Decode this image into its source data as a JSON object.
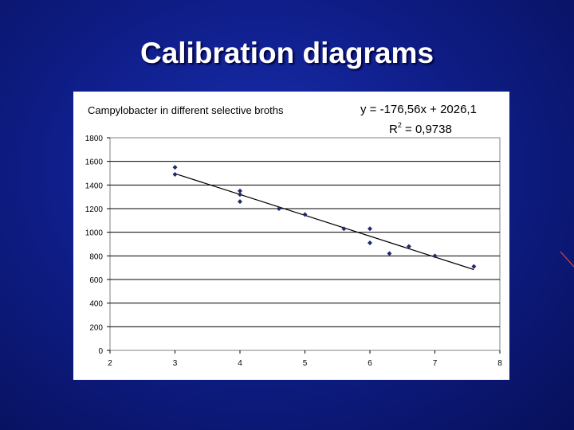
{
  "slide": {
    "title": "Calibration diagrams"
  },
  "colors": {
    "background": "#0f1e8a",
    "marker": "#1f2a6b",
    "trendline": "#000000",
    "decor_line": "#e05050"
  },
  "chart_data": {
    "type": "scatter",
    "title": "Campylobacter in different selective broths",
    "xlabel": "",
    "ylabel": "",
    "xlim": [
      2,
      8
    ],
    "ylim": [
      0,
      1800
    ],
    "x_ticks": [
      "2",
      "3",
      "4",
      "5",
      "6",
      "7",
      "8"
    ],
    "y_ticks": [
      "0",
      "200",
      "400",
      "600",
      "800",
      "1000",
      "1200",
      "1400",
      "1600",
      "1800"
    ],
    "grid": "horizontal",
    "points": [
      {
        "x": 3.0,
        "y": 1550
      },
      {
        "x": 3.0,
        "y": 1490
      },
      {
        "x": 4.0,
        "y": 1350
      },
      {
        "x": 4.0,
        "y": 1320
      },
      {
        "x": 4.0,
        "y": 1260
      },
      {
        "x": 4.6,
        "y": 1200
      },
      {
        "x": 5.0,
        "y": 1150
      },
      {
        "x": 5.6,
        "y": 1030
      },
      {
        "x": 6.0,
        "y": 1030
      },
      {
        "x": 6.0,
        "y": 910
      },
      {
        "x": 6.3,
        "y": 820
      },
      {
        "x": 6.6,
        "y": 880
      },
      {
        "x": 7.0,
        "y": 800
      },
      {
        "x": 7.6,
        "y": 710
      }
    ],
    "trendline": {
      "slope": -176.56,
      "intercept": 2026.1,
      "x_range": [
        3,
        7.6
      ]
    },
    "equation": "y = -176,56x + 2026,1",
    "r_squared_prefix": "R",
    "r_squared_exp": "2",
    "r_squared_value": " = 0,9738"
  }
}
